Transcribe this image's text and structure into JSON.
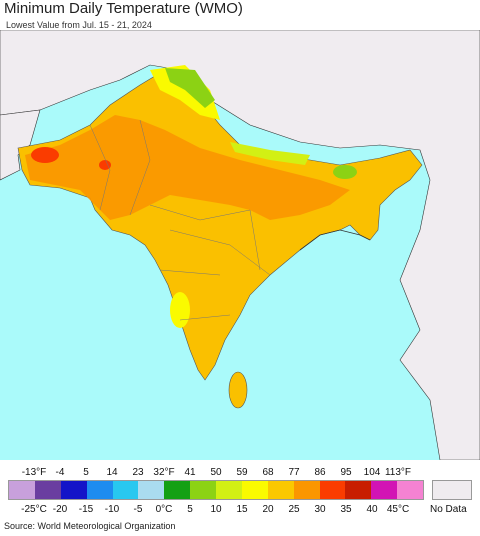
{
  "title": "Minimum Daily Temperature (WMO)",
  "subtitle": "Lowest Value from Jul. 15 - 21, 2024",
  "source": "Source: World Meteorological Organization",
  "legend": {
    "fahrenheit_labels": [
      "-13°F",
      "-4",
      "5",
      "14",
      "23",
      "32°F",
      "41",
      "50",
      "59",
      "68",
      "77",
      "86",
      "95",
      "104",
      "113°F"
    ],
    "celsius_labels": [
      "-25°C",
      "-20",
      "-15",
      "-10",
      "-5",
      "0°C",
      "5",
      "10",
      "15",
      "20",
      "25",
      "30",
      "35",
      "40",
      "45°C"
    ],
    "colors": [
      "#c8a0dc",
      "#6a3ea0",
      "#1414c8",
      "#1e8cf0",
      "#28c8f0",
      "#aadcf0",
      "#14a014",
      "#8cd214",
      "#d2f014",
      "#fafa00",
      "#fac800",
      "#fa9600",
      "#fa3c00",
      "#c81e00",
      "#d214b4",
      "#f582d2"
    ],
    "no_data_label": "No Data",
    "no_data_color": "#f0ecf0"
  },
  "map": {
    "ocean_color": "#aafafa",
    "land_outside_color": "#f0ecf0"
  }
}
